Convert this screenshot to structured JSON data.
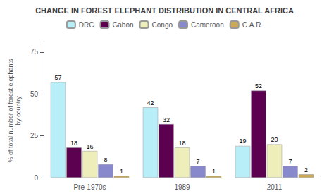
{
  "chart_data": {
    "type": "bar",
    "title": "CHANGE IN FOREST ELEPHANT DISTRIBUTION IN CENTRAL AFRICA",
    "ylabel": "% of total number of forest elephants\nby country",
    "categories": [
      "Pre-1970s",
      "1989",
      "2011"
    ],
    "series": [
      {
        "name": "DRC",
        "color": "#b8eef8",
        "values": [
          57,
          42,
          19
        ]
      },
      {
        "name": "Gabon",
        "color": "#5c0050",
        "values": [
          18,
          32,
          52
        ]
      },
      {
        "name": "Congo",
        "color": "#eeeebb",
        "values": [
          16,
          18,
          20
        ]
      },
      {
        "name": "Cameroon",
        "color": "#8888cc",
        "values": [
          8,
          7,
          7
        ]
      },
      {
        "name": "C.A.R.",
        "color": "#ccaa55",
        "values": [
          1,
          1,
          2
        ]
      }
    ],
    "ylim": [
      0,
      80
    ],
    "yticks": [
      0,
      25,
      50,
      75
    ],
    "grid": false,
    "legend": "top",
    "data_labels": true
  }
}
